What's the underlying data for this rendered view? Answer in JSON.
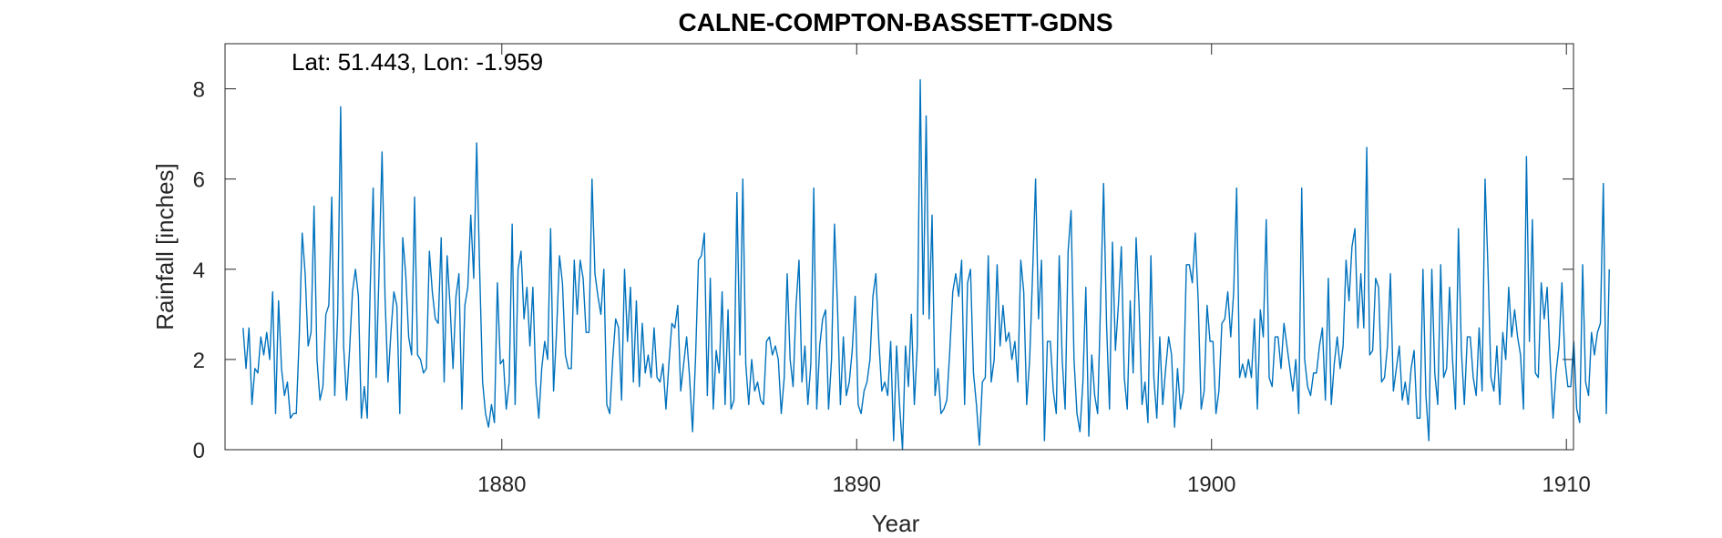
{
  "chart_data": {
    "type": "line",
    "title": "CALNE-COMPTON-BASSETT-GDNS",
    "annotation": "Lat: 51.443, Lon: -1.959",
    "xlabel": "Year",
    "ylabel": "Rainfall [inches]",
    "xlim": [
      1872.2,
      1910.2
    ],
    "ylim": [
      0,
      9
    ],
    "xticks": [
      1880,
      1890,
      1900,
      1910
    ],
    "yticks": [
      0,
      2,
      4,
      6,
      8
    ],
    "xtick_labels": [
      "1880",
      "1890",
      "1900",
      "1910"
    ],
    "ytick_labels": [
      "0",
      "2",
      "4",
      "6",
      "8"
    ],
    "grid": false,
    "line_color": "#0072BD",
    "series": [
      {
        "x_start": 1872.708,
        "x_step": 0.083333,
        "values": [
          2.7,
          1.8,
          2.7,
          1.0,
          1.8,
          1.7,
          2.5,
          2.1,
          2.6,
          2.0,
          3.5,
          0.8,
          3.3,
          1.8,
          1.2,
          1.5,
          0.7,
          0.8,
          0.8,
          2.5,
          4.8,
          3.9,
          2.3,
          2.6,
          5.4,
          2.0,
          1.1,
          1.4,
          3.0,
          3.2,
          5.6,
          1.2,
          3.0,
          7.6,
          2.3,
          1.1,
          2.2,
          3.5,
          4.0,
          3.4,
          0.7,
          1.4,
          0.7,
          3.6,
          5.8,
          1.6,
          4.0,
          6.6,
          3.4,
          1.5,
          2.6,
          3.5,
          3.2,
          0.8,
          4.7,
          3.9,
          2.5,
          2.1,
          5.6,
          2.1,
          2.0,
          1.7,
          1.8,
          4.4,
          3.5,
          2.9,
          2.8,
          4.7,
          1.5,
          4.3,
          3.2,
          1.8,
          3.4,
          3.9,
          0.9,
          3.2,
          3.6,
          5.2,
          3.8,
          6.8,
          4.0,
          1.5,
          0.8,
          0.5,
          1.0,
          0.6,
          3.7,
          1.9,
          2.0,
          0.9,
          1.5,
          5.0,
          1.0,
          4.0,
          4.4,
          2.9,
          3.6,
          2.3,
          3.6,
          1.5,
          0.7,
          1.8,
          2.4,
          2.0,
          4.9,
          1.3,
          2.6,
          4.3,
          3.7,
          2.1,
          1.8,
          1.8,
          4.2,
          3.0,
          4.2,
          3.8,
          2.6,
          2.6,
          6.0,
          3.9,
          3.4,
          3.0,
          4.0,
          1.0,
          0.8,
          2.0,
          2.9,
          2.7,
          1.1,
          4.0,
          2.4,
          3.6,
          1.5,
          3.3,
          1.4,
          2.8,
          1.7,
          2.1,
          1.6,
          2.7,
          1.6,
          1.5,
          1.9,
          0.9,
          1.9,
          2.8,
          2.7,
          3.2,
          1.3,
          1.9,
          2.5,
          1.6,
          0.4,
          2.0,
          4.2,
          4.3,
          4.8,
          1.2,
          3.8,
          0.9,
          2.2,
          1.7,
          3.5,
          1.0,
          3.1,
          0.9,
          1.1,
          5.7,
          2.1,
          6.0,
          1.9,
          1.0,
          2.0,
          1.3,
          1.5,
          1.1,
          1.0,
          2.4,
          2.5,
          2.1,
          2.3,
          2.0,
          0.8,
          1.6,
          3.9,
          2.0,
          1.4,
          3.2,
          4.2,
          1.5,
          2.3,
          1.0,
          1.9,
          5.8,
          0.9,
          2.3,
          2.9,
          3.1,
          0.9,
          2.0,
          5.0,
          3.2,
          1.0,
          2.5,
          1.2,
          1.5,
          2.2,
          3.4,
          1.0,
          0.8,
          1.3,
          1.5,
          2.0,
          3.4,
          3.9,
          2.4,
          1.3,
          1.5,
          1.2,
          2.4,
          0.2,
          2.3,
          1.0,
          0.0,
          2.3,
          1.4,
          3.0,
          1.0,
          2.3,
          8.2,
          3.0,
          7.4,
          2.9,
          5.2,
          1.2,
          1.8,
          0.8,
          0.9,
          1.1,
          2.2,
          3.5,
          3.9,
          3.4,
          4.2,
          1.0,
          3.7,
          4.0,
          1.7,
          1.0,
          0.1,
          1.5,
          1.6,
          4.3,
          1.5,
          2.0,
          4.1,
          2.3,
          3.2,
          2.4,
          2.6,
          2.0,
          2.4,
          1.5,
          4.2,
          3.5,
          1.0,
          2.0,
          3.9,
          6.0,
          2.9,
          4.2,
          0.2,
          2.4,
          2.4,
          1.3,
          0.8,
          4.3,
          2.0,
          0.9,
          4.4,
          5.3,
          2.0,
          0.8,
          0.4,
          1.5,
          3.6,
          0.3,
          2.1,
          1.2,
          0.8,
          3.3,
          5.9,
          2.8,
          0.9,
          4.6,
          2.2,
          3.2,
          4.5,
          1.6,
          0.9,
          3.3,
          1.7,
          4.7,
          3.2,
          1.0,
          1.5,
          0.6,
          4.3,
          1.6,
          0.7,
          2.5,
          1.0,
          1.8,
          2.5,
          2.1,
          0.5,
          1.8,
          0.9,
          1.3,
          4.1,
          4.1,
          3.7,
          4.8,
          3.3,
          0.9,
          1.3,
          3.2,
          2.4,
          2.4,
          0.8,
          1.3,
          2.8,
          2.9,
          3.5,
          2.5,
          3.5,
          5.8,
          1.6,
          1.9,
          1.6,
          2.0,
          1.6,
          2.9,
          0.9,
          3.1,
          2.5,
          5.1,
          1.6,
          1.4,
          2.5,
          2.5,
          1.8,
          2.8,
          2.3,
          1.8,
          1.3,
          2.0,
          0.8,
          5.8,
          2.0,
          1.4,
          1.2,
          1.7,
          1.7,
          2.3,
          2.7,
          1.1,
          3.8,
          1.0,
          1.9,
          2.5,
          1.8,
          2.3,
          4.2,
          3.3,
          4.5,
          4.9,
          2.7,
          3.9,
          2.7,
          6.7,
          2.1,
          2.2,
          3.8,
          3.6,
          1.5,
          1.6,
          2.3,
          3.9,
          1.3,
          1.8,
          2.3,
          1.1,
          1.5,
          1.0,
          1.8,
          2.2,
          0.7,
          0.7,
          4.0,
          1.2,
          0.2,
          4.0,
          1.7,
          1.0,
          4.1,
          1.6,
          1.8,
          3.6,
          2.0,
          0.9,
          4.9,
          2.2,
          1.0,
          2.5,
          2.5,
          1.6,
          1.2,
          2.7,
          1.3,
          6.0,
          4.0,
          1.6,
          1.3,
          2.3,
          1.0,
          2.6,
          2.0,
          3.6,
          2.5,
          3.1,
          2.5,
          2.1,
          0.9,
          6.5,
          2.4,
          5.1,
          1.7,
          1.6,
          3.7,
          2.9,
          3.6,
          2.0,
          0.7,
          1.7,
          2.3,
          3.7,
          2.0,
          1.4,
          1.4,
          2.4,
          0.9,
          0.6,
          4.1,
          1.5,
          1.2,
          2.6,
          2.1,
          2.6,
          2.8,
          5.9,
          0.8,
          4.0
        ]
      }
    ]
  }
}
